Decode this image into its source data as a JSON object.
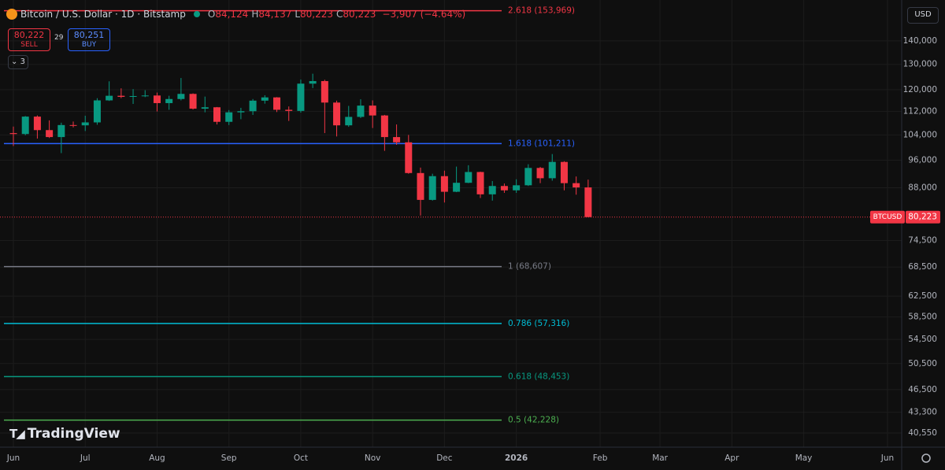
{
  "header": {
    "title": "Bitcoin / U.S. Dollar · 1D · Bitstamp",
    "ohlc": [
      {
        "key": "O",
        "text": "84,124"
      },
      {
        "key": "H",
        "text": "84,137"
      },
      {
        "key": "L",
        "text": "80,223"
      },
      {
        "key": "C",
        "text": "80,223"
      }
    ],
    "change": "−3,907 (−4.64%)"
  },
  "trade": {
    "sell": {
      "price": "80,222",
      "label": "SELL"
    },
    "spread": "29",
    "buy": {
      "price": "80,251",
      "label": "BUY"
    }
  },
  "indicators": "3",
  "currency": "USD",
  "brand": "TradingView",
  "chart_data": {
    "type": "candlestick",
    "log_scale": true,
    "grid": true,
    "up_color": "#089981",
    "down_color": "#f23645",
    "categories": [
      "Jun",
      null,
      null,
      null,
      null,
      null,
      "Jul",
      null,
      null,
      null,
      null,
      null,
      "Aug",
      null,
      null,
      null,
      null,
      null,
      "Sep",
      null,
      null,
      null,
      null,
      null,
      "Oct",
      null,
      null,
      null,
      null,
      null,
      "Nov",
      null,
      null,
      null,
      null,
      null,
      "Dec",
      null,
      null,
      null,
      null,
      null,
      "2026",
      null,
      null,
      null,
      null,
      null,
      null,
      "Feb",
      null,
      null,
      null,
      null,
      "Mar",
      null,
      null,
      null,
      null,
      null,
      "Apr",
      null,
      null,
      null,
      null,
      null,
      "May",
      null,
      null,
      null,
      null,
      null,
      null,
      "Jun"
    ],
    "open": [
      104600,
      104300,
      110200,
      105600,
      103300,
      107300,
      107200,
      108200,
      116000,
      117700,
      117300,
      117600,
      117800,
      115000,
      116500,
      118400,
      113000,
      113500,
      108400,
      111700,
      112100,
      115900,
      117100,
      112600,
      112200,
      122300,
      123300,
      115200,
      107200,
      110100,
      114100,
      110600,
      103300,
      101600,
      92200,
      84700,
      91300,
      86900,
      89400,
      92500,
      86200,
      88500,
      87300,
      88700,
      93700,
      90700,
      95500,
      89300,
      88100,
      null,
      null,
      null,
      null,
      null,
      null,
      null,
      null,
      null,
      null,
      null,
      null,
      null,
      null,
      null,
      null,
      null,
      null,
      null,
      null,
      null,
      null,
      null,
      null,
      null
    ],
    "high": [
      106800,
      110400,
      110600,
      108900,
      108100,
      108500,
      110500,
      116800,
      123200,
      120500,
      120200,
      119800,
      118900,
      117700,
      124500,
      118600,
      117400,
      113600,
      112500,
      113300,
      116500,
      117900,
      117200,
      113800,
      123900,
      126200,
      123800,
      115900,
      114000,
      116400,
      116000,
      110800,
      107500,
      104000,
      93800,
      92000,
      92900,
      94100,
      94500,
      92600,
      89900,
      89200,
      90400,
      94800,
      94000,
      97900,
      95700,
      91200,
      90300,
      null,
      null,
      null,
      null,
      null,
      null,
      null,
      null,
      null,
      null,
      null,
      null,
      null,
      null,
      null,
      null,
      null,
      null,
      null,
      null,
      null,
      null,
      null,
      null,
      null
    ],
    "low": [
      100400,
      103900,
      102800,
      103000,
      98200,
      106500,
      105300,
      107400,
      115800,
      116800,
      114700,
      117200,
      112000,
      112600,
      116000,
      112700,
      111700,
      107500,
      107300,
      109300,
      110800,
      114800,
      111800,
      108700,
      111600,
      120600,
      104600,
      103500,
      106700,
      109700,
      106300,
      98900,
      100800,
      92000,
      80600,
      84500,
      84000,
      86800,
      89300,
      85200,
      84500,
      86600,
      86600,
      88500,
      89300,
      90000,
      87300,
      86100,
      80200,
      null,
      null,
      null,
      null,
      null,
      null,
      null,
      null,
      null,
      null,
      null,
      null,
      null,
      null,
      null,
      null,
      null,
      null,
      null,
      null,
      null,
      null,
      null,
      null,
      null
    ],
    "close": [
      104300,
      110200,
      105600,
      103300,
      107300,
      107200,
      108200,
      116000,
      117700,
      117300,
      117600,
      117800,
      115000,
      116500,
      118400,
      113000,
      113500,
      108400,
      111700,
      112100,
      115900,
      117100,
      112600,
      112200,
      122300,
      123300,
      115200,
      107200,
      110100,
      114100,
      110600,
      103300,
      101600,
      92200,
      84700,
      91300,
      86900,
      89400,
      92500,
      86200,
      88500,
      87300,
      88700,
      93700,
      90700,
      95500,
      89300,
      88100,
      80223,
      null,
      null,
      null,
      null,
      null,
      null,
      null,
      null,
      null,
      null,
      null,
      null,
      null,
      null,
      null,
      null,
      null,
      null,
      null,
      null,
      null,
      null,
      null,
      null,
      null
    ],
    "ylim": [
      38770,
      159300
    ],
    "yticks": [
      {
        "value": 140000,
        "label": "140,000"
      },
      {
        "value": 130000,
        "label": "130,000"
      },
      {
        "value": 120000,
        "label": "120,000"
      },
      {
        "value": 112000,
        "label": "112,000"
      },
      {
        "value": 104000,
        "label": "104,000"
      },
      {
        "value": 96000,
        "label": "96,000"
      },
      {
        "value": 88000,
        "label": "88,000"
      },
      {
        "value": 74500,
        "label": "74,500"
      },
      {
        "value": 68500,
        "label": "68,500"
      },
      {
        "value": 62500,
        "label": "62,500"
      },
      {
        "value": 58500,
        "label": "58,500"
      },
      {
        "value": 54500,
        "label": "54,500"
      },
      {
        "value": 50500,
        "label": "50,500"
      },
      {
        "value": 46500,
        "label": "46,500"
      },
      {
        "value": 43300,
        "label": "43,300"
      },
      {
        "value": 40550,
        "label": "40,550"
      }
    ],
    "fib_levels": [
      {
        "value": 153969,
        "label": "2.618 (153,969)",
        "color": "#f23645"
      },
      {
        "value": 101211,
        "label": "1.618 (101,211)",
        "color": "#2962ff"
      },
      {
        "value": 68607,
        "label": "1 (68,607)",
        "color": "#787b86"
      },
      {
        "value": 57316,
        "label": "0.786 (57,316)",
        "color": "#00bcd4"
      },
      {
        "value": 48453,
        "label": "0.618 (48,453)",
        "color": "#089981"
      },
      {
        "value": 42228,
        "label": "0.5 (42,228)",
        "color": "#4caf50"
      }
    ],
    "symbol": "BTCUSD",
    "last_price": {
      "value": 80223,
      "label": "80,223"
    }
  }
}
